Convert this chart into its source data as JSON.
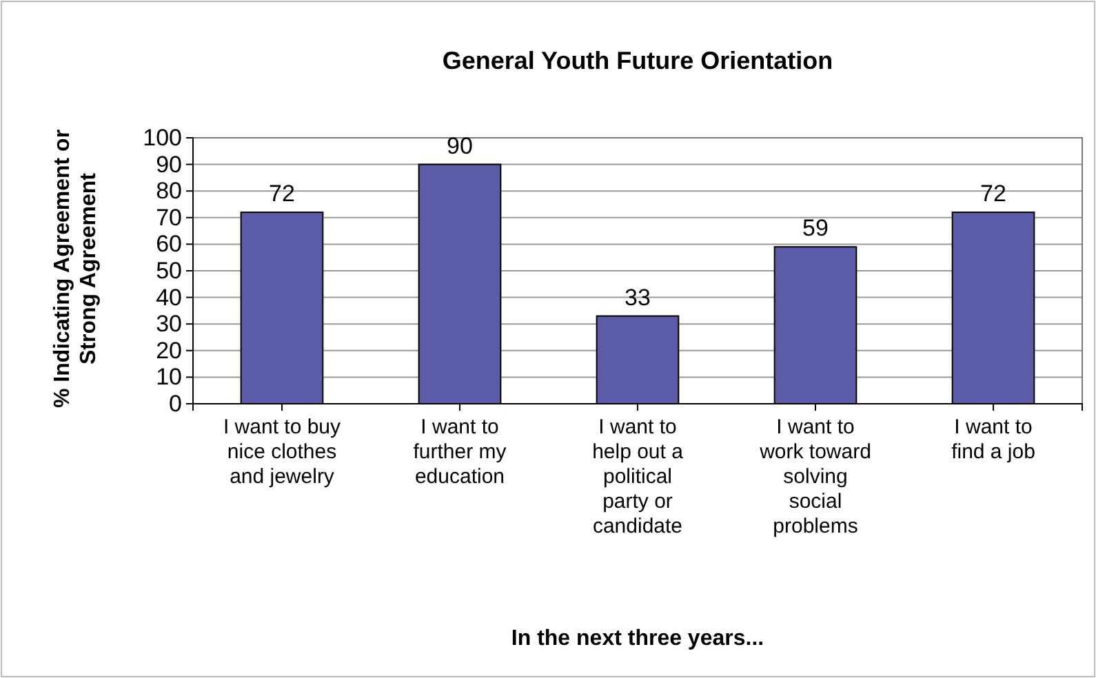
{
  "chart_data": {
    "type": "bar",
    "title": "General Youth Future Orientation",
    "xlabel": "In the next three years...",
    "ylabel": "% Indicating Agreement or Strong Agreement",
    "categories": [
      "I want to buy nice clothes and jewelry",
      "I want to further my education",
      "I want to help out a political party or candidate",
      "I want to work toward solving social problems",
      "I want to find a job"
    ],
    "values": [
      72,
      90,
      33,
      59,
      72
    ],
    "color": "#5b5ba8",
    "ylim": [
      0,
      100
    ],
    "yticks": [
      0,
      10,
      20,
      30,
      40,
      50,
      60,
      70,
      80,
      90,
      100
    ],
    "grid": "y",
    "data_labels": true
  }
}
